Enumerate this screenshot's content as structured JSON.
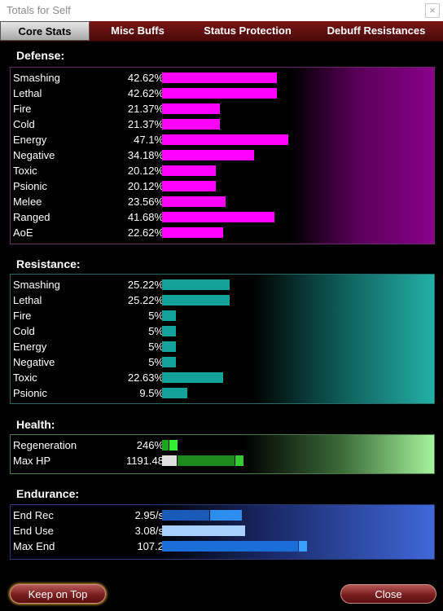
{
  "window": {
    "title": "Totals for Self",
    "close_glyph": "×"
  },
  "tabs": [
    {
      "label": "Core Stats",
      "active": true
    },
    {
      "label": "Misc Buffs",
      "active": false
    },
    {
      "label": "Status Protection",
      "active": false
    },
    {
      "label": "Debuff Resistances",
      "active": false
    }
  ],
  "defense": {
    "title": "Defense:",
    "bar_color": "#ff00ff",
    "rows": [
      {
        "label": "Smashing",
        "value": "42.62%",
        "fill": 42.62
      },
      {
        "label": "Lethal",
        "value": "42.62%",
        "fill": 42.62
      },
      {
        "label": "Fire",
        "value": "21.37%",
        "fill": 21.37
      },
      {
        "label": "Cold",
        "value": "21.37%",
        "fill": 21.37
      },
      {
        "label": "Energy",
        "value": "47.1%",
        "fill": 47.1
      },
      {
        "label": "Negative",
        "value": "34.18%",
        "fill": 34.18
      },
      {
        "label": "Toxic",
        "value": "20.12%",
        "fill": 20.12
      },
      {
        "label": "Psionic",
        "value": "20.12%",
        "fill": 20.12
      },
      {
        "label": "Melee",
        "value": "23.56%",
        "fill": 23.56
      },
      {
        "label": "Ranged",
        "value": "41.68%",
        "fill": 41.68
      },
      {
        "label": "AoE",
        "value": "22.62%",
        "fill": 22.62
      }
    ]
  },
  "resistance": {
    "title": "Resistance:",
    "bar_color": "#13a39b",
    "rows": [
      {
        "label": "Smashing",
        "value": "25.22%",
        "fill": 25.22
      },
      {
        "label": "Lethal",
        "value": "25.22%",
        "fill": 25.22
      },
      {
        "label": "Fire",
        "value": "5%",
        "fill": 5
      },
      {
        "label": "Cold",
        "value": "5%",
        "fill": 5
      },
      {
        "label": "Energy",
        "value": "5%",
        "fill": 5
      },
      {
        "label": "Negative",
        "value": "5%",
        "fill": 5
      },
      {
        "label": "Toxic",
        "value": "22.63%",
        "fill": 22.63
      },
      {
        "label": "Psionic",
        "value": "9.5%",
        "fill": 9.5
      }
    ]
  },
  "health": {
    "title": "Health:",
    "rows": [
      {
        "label": "Regeneration",
        "value": "246%"
      },
      {
        "label": "Max HP",
        "value": "1191.48"
      }
    ]
  },
  "endurance": {
    "title": "Endurance:",
    "rows": [
      {
        "label": "End Rec",
        "value": "2.95/s"
      },
      {
        "label": "End Use",
        "value": "3.08/s"
      },
      {
        "label": "Max End",
        "value": "107.2"
      }
    ]
  },
  "buttons": {
    "keep_on_top": "Keep on Top",
    "close": "Close"
  }
}
